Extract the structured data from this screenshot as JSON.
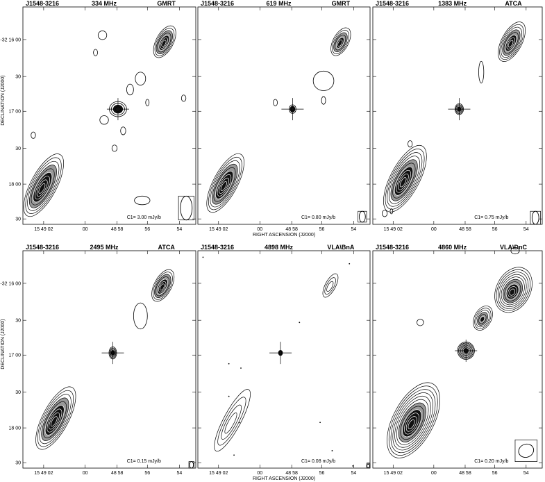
{
  "figure": {
    "xlabel": "RIGHT ASCENSION (J2000)",
    "ylabel": "DECLINATION (J2000)",
    "x_ticks": [
      "15 49 02",
      "00",
      "48 58",
      "56",
      "54"
    ],
    "y_ticks": [
      "-32 16 00",
      "30",
      "17 00",
      "30",
      "18 00",
      "30"
    ]
  },
  "chart_data": [
    {
      "type": "contour",
      "source": "J1548-3216",
      "frequency": "334 MHz",
      "telescope": "GMRT",
      "c1": "C1= 3.00 mJy/b",
      "xlabel": "",
      "ylabel": "DECLINATION (J2000)"
    },
    {
      "type": "contour",
      "source": "J1548-3216",
      "frequency": "619 MHz",
      "telescope": "GMRT",
      "c1": "C1= 0.80 mJy/b",
      "xlabel": "RIGHT ASCENSION (J2000)",
      "ylabel": ""
    },
    {
      "type": "contour",
      "source": "J1548-3216",
      "frequency": "1383 MHz",
      "telescope": "ATCA",
      "c1": "C1= 0.75 mJy/b",
      "xlabel": "",
      "ylabel": ""
    },
    {
      "type": "contour",
      "source": "J1548-3216",
      "frequency": "2495 MHz",
      "telescope": "ATCA",
      "c1": "C1= 0.15 mJy/b",
      "xlabel": "",
      "ylabel": "DECLINATION (J2000)"
    },
    {
      "type": "contour",
      "source": "J1548-3216",
      "frequency": "4898 MHz",
      "telescope": "VLA\\BnA",
      "c1": "C1= 0.08 mJy/b",
      "xlabel": "RIGHT ASCENSION (J2000)",
      "ylabel": ""
    },
    {
      "type": "contour",
      "source": "J1548-3216",
      "frequency": "4860 MHz",
      "telescope": "VLA\\DnC",
      "c1": "C1= 0.20 mJy/b",
      "xlabel": "",
      "ylabel": ""
    }
  ]
}
